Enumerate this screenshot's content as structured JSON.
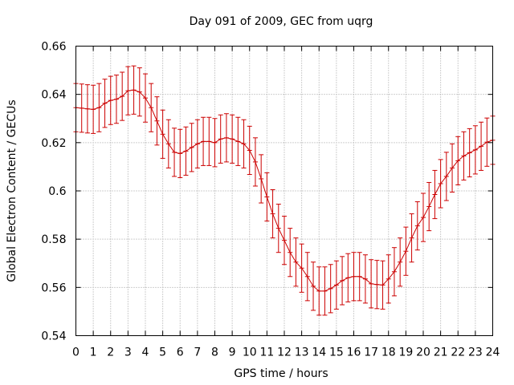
{
  "chart_data": {
    "type": "line",
    "title": "Day 091 of 2009, GEC from uqrg",
    "xlabel": "GPS time / hours",
    "ylabel": "Global Electron Content / GECUs",
    "xlim": [
      0,
      24
    ],
    "ylim": [
      0.54,
      0.66
    ],
    "x_ticks": [
      0,
      1,
      2,
      3,
      4,
      5,
      6,
      7,
      8,
      9,
      10,
      11,
      12,
      13,
      14,
      15,
      16,
      17,
      18,
      19,
      20,
      21,
      22,
      23,
      24
    ],
    "y_ticks": [
      0.54,
      0.56,
      0.58,
      0.6,
      0.62,
      0.64,
      0.66
    ],
    "y_tick_labels": [
      "0.54",
      "0.56",
      "0.58",
      "0.6",
      "0.62",
      "0.64",
      "0.66"
    ],
    "grid": true,
    "error_half_width": 0.01,
    "series": [
      {
        "name": "GEC",
        "color": "#cc0000",
        "x": [
          0,
          0.333,
          0.667,
          1,
          1.333,
          1.667,
          2,
          2.333,
          2.667,
          3,
          3.333,
          3.667,
          4,
          4.333,
          4.667,
          5,
          5.333,
          5.667,
          6,
          6.333,
          6.667,
          7,
          7.333,
          7.667,
          8,
          8.333,
          8.667,
          9,
          9.333,
          9.667,
          10,
          10.333,
          10.667,
          11,
          11.333,
          11.667,
          12,
          12.333,
          12.667,
          13,
          13.333,
          13.667,
          14,
          14.333,
          14.667,
          15,
          15.333,
          15.667,
          16,
          16.333,
          16.667,
          17,
          17.333,
          17.667,
          18,
          18.333,
          18.667,
          19,
          19.333,
          19.667,
          20,
          20.333,
          20.667,
          21,
          21.333,
          21.667,
          22,
          22.333,
          22.667,
          23,
          23.333,
          23.667,
          24
        ],
        "values": [
          0.6345,
          0.6343,
          0.634,
          0.6338,
          0.6345,
          0.6363,
          0.6375,
          0.638,
          0.6392,
          0.6415,
          0.6418,
          0.641,
          0.6385,
          0.6345,
          0.629,
          0.6235,
          0.6195,
          0.616,
          0.6155,
          0.6165,
          0.618,
          0.6195,
          0.6205,
          0.6205,
          0.62,
          0.6215,
          0.622,
          0.6215,
          0.6205,
          0.6195,
          0.6168,
          0.612,
          0.605,
          0.5975,
          0.5905,
          0.5845,
          0.5795,
          0.5745,
          0.5705,
          0.568,
          0.5645,
          0.5605,
          0.5585,
          0.5585,
          0.5595,
          0.561,
          0.5628,
          0.564,
          0.5645,
          0.5645,
          0.5635,
          0.5615,
          0.5612,
          0.561,
          0.5635,
          0.5665,
          0.5705,
          0.575,
          0.5805,
          0.5855,
          0.589,
          0.5935,
          0.5985,
          0.603,
          0.606,
          0.6095,
          0.6125,
          0.6145,
          0.6158,
          0.617,
          0.6185,
          0.6202,
          0.621
        ]
      }
    ]
  }
}
